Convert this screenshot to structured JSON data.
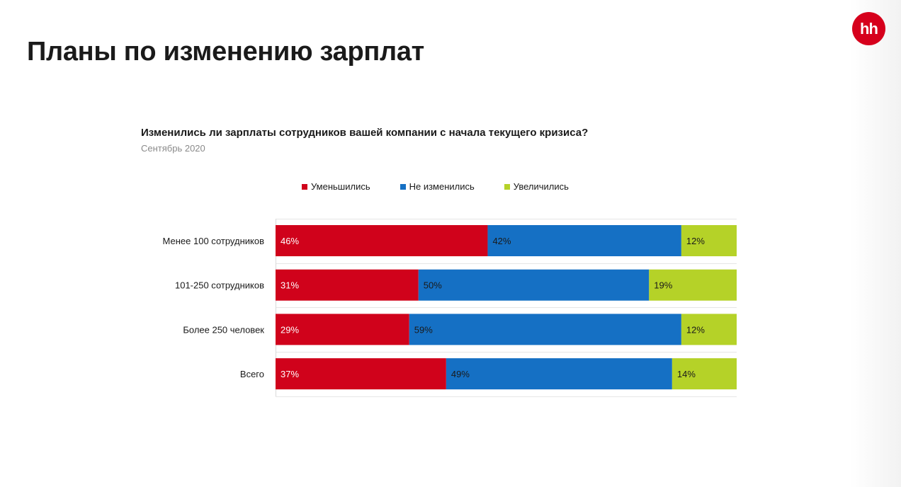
{
  "page": {
    "title": "Планы по изменению зарплат",
    "logo_text": "hh",
    "logo_color": "#d6001c"
  },
  "chart_data": {
    "type": "bar",
    "orientation": "horizontal",
    "stacked": true,
    "title": "Изменились ли зарплаты сотрудников вашей компании с начала текущего кризиса?",
    "subtitle": "Сентябрь 2020",
    "categories": [
      "Менее 100 сотрудников",
      "101-250 сотрудников",
      "Более 250 человек",
      "Всего"
    ],
    "series": [
      {
        "name": "Уменьшились",
        "color": "#d0021b",
        "values": [
          46,
          31,
          29,
          37
        ],
        "labels": [
          "46%",
          "31%",
          "29%",
          "37%"
        ]
      },
      {
        "name": "Не изменились",
        "color": "#1570c4",
        "values": [
          42,
          50,
          59,
          49
        ],
        "labels": [
          "42%",
          "50%",
          "59%",
          "49%"
        ]
      },
      {
        "name": "Увеличились",
        "color": "#b5d228",
        "values": [
          12,
          19,
          12,
          14
        ],
        "labels": [
          "12%",
          "19%",
          "12%",
          "14%"
        ]
      }
    ],
    "xlim": [
      0,
      100
    ],
    "legend_position": "top",
    "grid": true
  }
}
